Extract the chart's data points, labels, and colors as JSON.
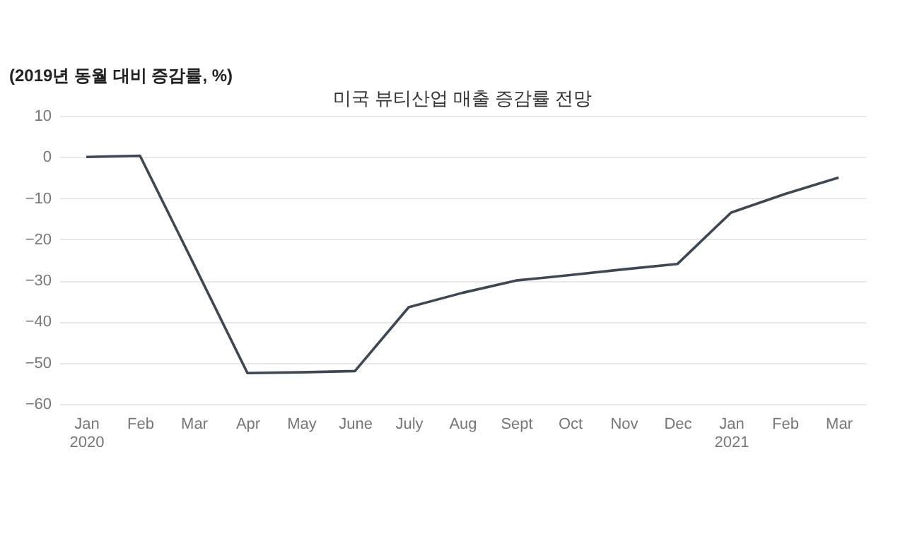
{
  "chart_data": {
    "type": "line",
    "title": "미국 뷰티산업 매출 증감률 전망",
    "ylabel": "(2019년 동월 대비 증감률, %)",
    "categories": [
      "Jan\n2020",
      "Feb",
      "Mar",
      "Apr",
      "May",
      "June",
      "July",
      "Aug",
      "Sept",
      "Oct",
      "Nov",
      "Dec",
      "Jan\n2021",
      "Feb",
      "Mar"
    ],
    "series": [
      {
        "color": "#3d4852",
        "values": [
          0,
          0.3,
          -26,
          -52.5,
          -52.3,
          -52,
          -36.5,
          -33,
          -30,
          -28.7,
          -27.3,
          -26,
          -13.5,
          -9,
          -5
        ]
      }
    ],
    "ylim": [
      -60,
      10
    ],
    "yticks": [
      -60,
      -50,
      -40,
      -30,
      -20,
      -10,
      0,
      10
    ],
    "grid": "y",
    "marker": "none",
    "line_style": "solid"
  }
}
